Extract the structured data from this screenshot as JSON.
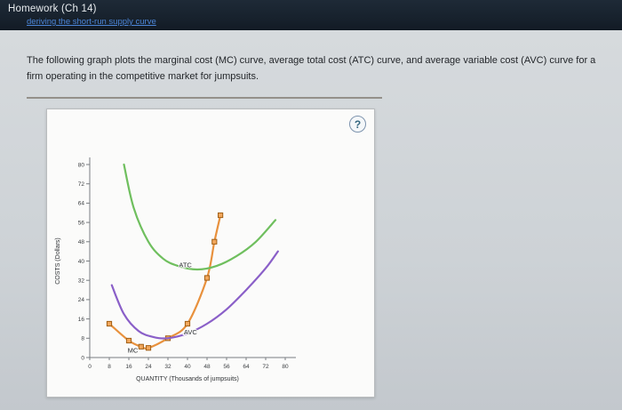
{
  "header": {
    "title": "Homework (Ch 14)",
    "clipped_link": "deriving the short-run supply curve"
  },
  "intro": {
    "text": "The following graph plots the marginal cost (MC) curve, average total cost (ATC) curve, and average variable cost (AVC) curve for a firm operating in the competitive market for jumpsuits."
  },
  "panel": {
    "help_label": "?"
  },
  "colors": {
    "mc": "#e8913d",
    "mc_marker_fill": "#f2a75c",
    "mc_marker_stroke": "#a05f16",
    "atc": "#6fbf5e",
    "avc": "#8a5fc8",
    "link_blue": "#4c86d9"
  },
  "chart_data": {
    "type": "line",
    "title": "",
    "xlabel": "QUANTITY (Thousands of jumpsuits)",
    "ylabel": "COSTS (Dollars)",
    "xlim": [
      0,
      80
    ],
    "ylim": [
      0,
      80
    ],
    "xticks": [
      0,
      8,
      16,
      24,
      32,
      40,
      48,
      56,
      64,
      72,
      80
    ],
    "yticks": [
      0,
      8,
      16,
      24,
      32,
      40,
      48,
      56,
      64,
      72,
      80
    ],
    "grid": false,
    "legend": "inline-labels",
    "series": [
      {
        "name": "MC",
        "color": "#e8913d",
        "marker": "square",
        "points": [
          [
            8,
            14
          ],
          [
            16,
            7
          ],
          [
            21,
            4.5
          ],
          [
            24,
            4
          ],
          [
            32,
            8
          ],
          [
            40,
            14
          ],
          [
            48,
            33
          ],
          [
            51,
            48
          ],
          [
            53.5,
            59
          ]
        ],
        "label_at": [
          15.5,
          2
        ]
      },
      {
        "name": "ATC",
        "color": "#6fbf5e",
        "marker": "none",
        "points": [
          [
            14,
            80
          ],
          [
            18,
            62
          ],
          [
            24,
            48
          ],
          [
            30,
            41
          ],
          [
            36,
            38
          ],
          [
            44,
            36.5
          ],
          [
            52,
            38
          ],
          [
            60,
            42
          ],
          [
            68,
            48
          ],
          [
            76,
            57
          ]
        ],
        "label_at": [
          36.5,
          37.5
        ]
      },
      {
        "name": "AVC",
        "color": "#8a5fc8",
        "marker": "none",
        "points": [
          [
            9,
            30
          ],
          [
            14,
            18
          ],
          [
            20,
            11
          ],
          [
            26,
            8.5
          ],
          [
            32,
            8
          ],
          [
            40,
            10
          ],
          [
            48,
            14
          ],
          [
            56,
            20
          ],
          [
            64,
            28
          ],
          [
            72,
            37
          ],
          [
            77,
            44
          ]
        ],
        "label_at": [
          38.5,
          9.5
        ]
      }
    ]
  }
}
